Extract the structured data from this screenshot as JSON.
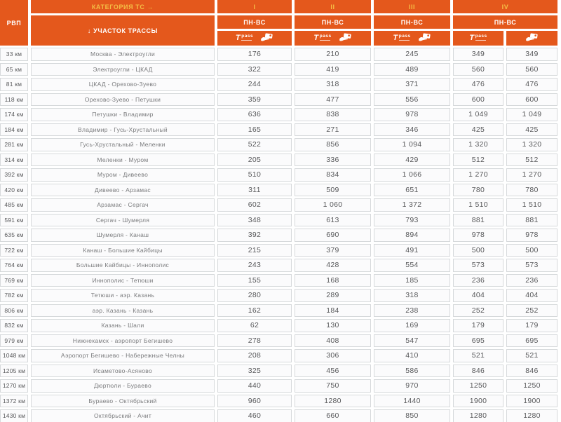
{
  "header": {
    "rvp": "РВП",
    "category_label": "КАТЕГОРИЯ ТС →",
    "section_label": "↓ УЧАСТОК ТРАССЫ",
    "schedule_label": "ПН-ВС",
    "categories": [
      "I",
      "II",
      "III",
      "IV"
    ],
    "tpass_t": "T",
    "tpass_label": "pass"
  },
  "colors": {
    "header_orange": "#E4581C",
    "accent_yellow": "#F4BE45",
    "cell_border": "#d6d9db",
    "price_text": "#58595b"
  },
  "icons": [
    "tpass-icon",
    "transponder-hand-icon"
  ],
  "chart_data": {
    "type": "table",
    "columns": [
      "РВП",
      "Участок трассы",
      "I ПН-ВС",
      "II ПН-ВС",
      "III ПН-ВС",
      "IV ПН-ВС (T-pass)",
      "IV ПН-ВС (транспондер)"
    ],
    "rows": [
      {
        "km": "33 км",
        "section": "Москва - Электроугли",
        "prices": [
          "176",
          "210",
          "245",
          "349",
          "349"
        ]
      },
      {
        "km": "65 км",
        "section": "Электроугли - ЦКАД",
        "prices": [
          "322",
          "419",
          "489",
          "560",
          "560"
        ]
      },
      {
        "km": "81 км",
        "section": "ЦКАД - Орехово-Зуево",
        "prices": [
          "244",
          "318",
          "371",
          "476",
          "476"
        ]
      },
      {
        "km": "118 км",
        "section": "Орехово-Зуево - Петушки",
        "prices": [
          "359",
          "477",
          "556",
          "600",
          "600"
        ]
      },
      {
        "km": "174 км",
        "section": "Петушки - Владимир",
        "prices": [
          "636",
          "838",
          "978",
          "1 049",
          "1 049"
        ]
      },
      {
        "km": "184 км",
        "section": "Владимир - Гусь-Хрустальный",
        "prices": [
          "165",
          "271",
          "346",
          "425",
          "425"
        ]
      },
      {
        "km": "281 км",
        "section": "Гусь-Хрустальный - Меленки",
        "prices": [
          "522",
          "856",
          "1 094",
          "1 320",
          "1 320"
        ]
      },
      {
        "km": "314 км",
        "section": "Меленки - Муром",
        "prices": [
          "205",
          "336",
          "429",
          "512",
          "512"
        ]
      },
      {
        "km": "392 км",
        "section": "Муром - Дивеево",
        "prices": [
          "510",
          "834",
          "1 066",
          "1 270",
          "1 270"
        ]
      },
      {
        "km": "420 км",
        "section": "Дивеево - Арзамас",
        "prices": [
          "311",
          "509",
          "651",
          "780",
          "780"
        ]
      },
      {
        "km": "485 км",
        "section": "Арзамас - Сергач",
        "prices": [
          "602",
          "1 060",
          "1 372",
          "1 510",
          "1 510"
        ]
      },
      {
        "km": "591 км",
        "section": "Сергач - Шумерля",
        "prices": [
          "348",
          "613",
          "793",
          "881",
          "881"
        ]
      },
      {
        "km": "635 км",
        "section": "Шумерля - Канаш",
        "prices": [
          "392",
          "690",
          "894",
          "978",
          "978"
        ]
      },
      {
        "km": "722 км",
        "section": "Канаш - Большие Кайбицы",
        "prices": [
          "215",
          "379",
          "491",
          "500",
          "500"
        ]
      },
      {
        "km": "764 км",
        "section": "Большие Кайбицы - Иннополис",
        "prices": [
          "243",
          "428",
          "554",
          "573",
          "573"
        ]
      },
      {
        "km": "769 км",
        "section": "Иннополис - Тетюши",
        "prices": [
          "155",
          "168",
          "185",
          "236",
          "236"
        ]
      },
      {
        "km": "782 км",
        "section": "Тетюши - аэр. Казань",
        "prices": [
          "280",
          "289",
          "318",
          "404",
          "404"
        ]
      },
      {
        "km": "806 км",
        "section": "аэр. Казань - Казань",
        "prices": [
          "162",
          "184",
          "238",
          "252",
          "252"
        ]
      },
      {
        "km": "832 км",
        "section": "Казань - Шали",
        "prices": [
          "62",
          "130",
          "169",
          "179",
          "179"
        ]
      },
      {
        "km": "979 км",
        "section": "Нижнекамск - аэропорт Бегишево",
        "prices": [
          "278",
          "408",
          "547",
          "695",
          "695"
        ]
      },
      {
        "km": "1048 км",
        "section": "Аэропорт Бегишево - Набережные Челны",
        "prices": [
          "208",
          "306",
          "410",
          "521",
          "521"
        ]
      },
      {
        "km": "1205 км",
        "section": "Исаметово-Асяново",
        "prices": [
          "325",
          "456",
          "586",
          "846",
          "846"
        ]
      },
      {
        "km": "1270 км",
        "section": "Дюртюли - Бураево",
        "prices": [
          "440",
          "750",
          "970",
          "1250",
          "1250"
        ]
      },
      {
        "km": "1372 км",
        "section": "Бураево - Октябрьский",
        "prices": [
          "960",
          "1280",
          "1440",
          "1900",
          "1900"
        ]
      },
      {
        "km": "1430 км",
        "section": "Октябрьский - Ачит",
        "prices": [
          "460",
          "660",
          "850",
          "1280",
          "1280"
        ]
      }
    ]
  }
}
